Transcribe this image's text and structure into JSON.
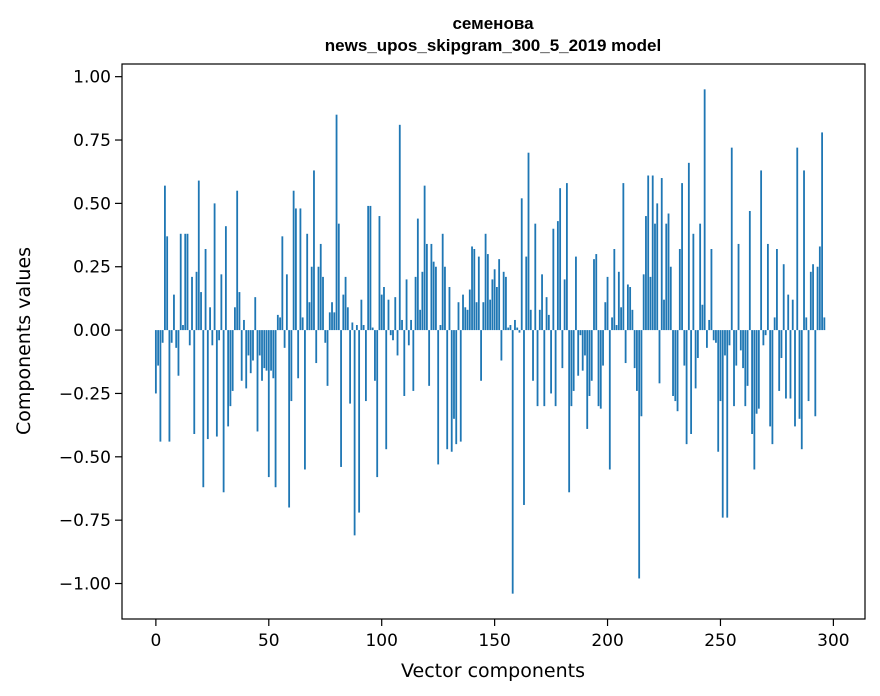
{
  "chart_data": {
    "type": "bar",
    "title_line1": "семенова",
    "title_line2": "news_upos_skipgram_300_5_2019 model",
    "xlabel": "Vector components",
    "ylabel": "Components values",
    "xlim": [
      -15,
      314
    ],
    "ylim": [
      -1.14,
      1.05
    ],
    "x_ticks": [
      0,
      50,
      100,
      150,
      200,
      250,
      300
    ],
    "x_tick_labels": [
      "0",
      "50",
      "100",
      "150",
      "200",
      "250",
      "300"
    ],
    "y_ticks": [
      1.0,
      0.75,
      0.5,
      0.25,
      0.0,
      -0.25,
      -0.5,
      -0.75,
      -1.0
    ],
    "y_tick_labels": [
      "1.00",
      "0.75",
      "0.50",
      "0.25",
      "0.00",
      "−0.25",
      "−0.50",
      "−0.75",
      "−1.00"
    ],
    "bar_color": "#1f77b4",
    "values": [
      -0.25,
      -0.14,
      -0.44,
      -0.05,
      0.57,
      0.37,
      -0.44,
      -0.05,
      0.14,
      -0.07,
      -0.18,
      0.38,
      0.02,
      0.38,
      0.38,
      -0.06,
      0.21,
      -0.41,
      0.23,
      0.59,
      0.15,
      -0.62,
      0.32,
      -0.43,
      0.09,
      -0.06,
      0.5,
      -0.42,
      -0.04,
      0.22,
      -0.64,
      0.41,
      -0.38,
      -0.3,
      -0.24,
      0.09,
      0.55,
      0.15,
      -0.2,
      0.04,
      -0.23,
      -0.1,
      -0.17,
      -0.12,
      0.13,
      -0.4,
      -0.1,
      -0.2,
      -0.15,
      -0.16,
      -0.58,
      -0.16,
      -0.19,
      -0.62,
      0.06,
      0.05,
      0.37,
      -0.07,
      0.22,
      -0.7,
      -0.28,
      0.55,
      0.48,
      -0.19,
      0.48,
      0.05,
      -0.55,
      0.38,
      0.11,
      0.25,
      0.63,
      -0.13,
      0.25,
      0.34,
      0.21,
      -0.05,
      -0.22,
      0.07,
      0.11,
      0.07,
      0.85,
      0.42,
      -0.54,
      0.14,
      0.21,
      0.09,
      -0.29,
      0.03,
      -0.81,
      0.02,
      -0.72,
      0.12,
      0.02,
      -0.28,
      0.49,
      0.49,
      0.01,
      -0.2,
      -0.58,
      0.45,
      0.14,
      0.17,
      -0.47,
      0.12,
      -0.02,
      -0.04,
      0.13,
      -0.1,
      0.81,
      0.04,
      -0.26,
      0.2,
      -0.06,
      0.04,
      -0.24,
      0.21,
      0.44,
      0.08,
      0.23,
      0.57,
      0.34,
      -0.22,
      0.34,
      0.27,
      0.25,
      -0.53,
      0.02,
      0.38,
      0.25,
      -0.47,
      0.17,
      -0.48,
      -0.35,
      -0.45,
      0.11,
      -0.44,
      0.14,
      0.09,
      0.08,
      0.16,
      0.33,
      0.32,
      0.11,
      0.29,
      -0.2,
      0.11,
      0.38,
      0.3,
      0.12,
      0.2,
      0.24,
      0.17,
      0.28,
      -0.12,
      0.23,
      0.21,
      0.01,
      0.02,
      -1.04,
      0.04,
      0.01,
      -0.01,
      0.52,
      -0.69,
      0.29,
      0.7,
      0.08,
      -0.2,
      0.42,
      -0.3,
      0.08,
      0.22,
      -0.3,
      0.13,
      0.06,
      -0.25,
      0.4,
      -0.3,
      0.43,
      0.56,
      -0.15,
      0.2,
      0.58,
      -0.64,
      -0.3,
      -0.24,
      0.29,
      -0.18,
      -0.02,
      -0.16,
      -0.1,
      -0.39,
      -0.26,
      -0.2,
      0.28,
      0.3,
      -0.3,
      -0.31,
      -0.14,
      0.11,
      0.21,
      -0.55,
      0.05,
      0.32,
      0.02,
      0.23,
      0.09,
      0.58,
      -0.13,
      0.18,
      0.17,
      0.08,
      -0.15,
      -0.24,
      -0.98,
      -0.34,
      0.22,
      0.45,
      0.61,
      0.21,
      0.61,
      0.42,
      0.5,
      -0.21,
      0.6,
      0.12,
      0.42,
      0.46,
      0.25,
      -0.26,
      -0.28,
      -0.32,
      0.32,
      0.58,
      -0.14,
      -0.45,
      0.66,
      -0.41,
      0.38,
      -0.23,
      -0.11,
      0.42,
      0.1,
      0.95,
      -0.07,
      0.04,
      0.32,
      -0.04,
      -0.05,
      -0.48,
      -0.28,
      -0.74,
      -0.1,
      -0.74,
      -0.06,
      0.72,
      -0.3,
      -0.14,
      0.34,
      -0.08,
      -0.15,
      -0.3,
      -0.22,
      0.47,
      -0.41,
      -0.55,
      -0.33,
      -0.31,
      0.63,
      -0.06,
      -0.02,
      0.34,
      -0.38,
      -0.45,
      0.05,
      0.32,
      -0.24,
      -0.11,
      0.26,
      -0.27,
      0.14,
      -0.27,
      0.12,
      -0.38,
      0.72,
      -0.35,
      -0.47,
      0.63,
      0.05,
      -0.28,
      0.23,
      0.26,
      -0.34,
      0.25,
      0.33,
      0.78,
      0.05
    ]
  }
}
